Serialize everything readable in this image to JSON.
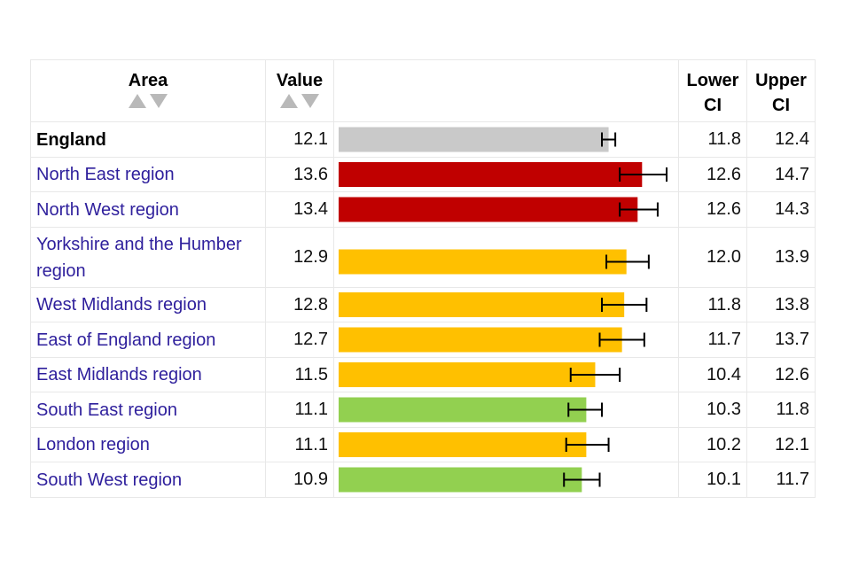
{
  "table": {
    "headers": {
      "area": "Area",
      "value": "Value",
      "lower_ci": [
        "Lower",
        "CI"
      ],
      "upper_ci": [
        "Upper",
        "CI"
      ]
    }
  },
  "colors": {
    "england": "#c9c9c9",
    "worse": "#c00000",
    "similar": "#ffc000",
    "better": "#92d050"
  },
  "icons": {
    "sort_up": "sort-up-triangle-icon",
    "sort_down": "sort-down-triangle-icon"
  },
  "chart_data": {
    "type": "bar",
    "orientation": "horizontal",
    "error_bars": true,
    "xlim": [
      0,
      14.7
    ],
    "rows": [
      {
        "area": "England",
        "value": "12.1",
        "lower": "11.8",
        "upper": "12.4",
        "status": "england"
      },
      {
        "area": "North East region",
        "value": "13.6",
        "lower": "12.6",
        "upper": "14.7",
        "status": "worse"
      },
      {
        "area": "North West region",
        "value": "13.4",
        "lower": "12.6",
        "upper": "14.3",
        "status": "worse"
      },
      {
        "area": "Yorkshire and the Humber region",
        "value": "12.9",
        "lower": "12.0",
        "upper": "13.9",
        "status": "similar"
      },
      {
        "area": "West Midlands region",
        "value": "12.8",
        "lower": "11.8",
        "upper": "13.8",
        "status": "similar"
      },
      {
        "area": "East of England region",
        "value": "12.7",
        "lower": "11.7",
        "upper": "13.7",
        "status": "similar"
      },
      {
        "area": "East Midlands region",
        "value": "11.5",
        "lower": "10.4",
        "upper": "12.6",
        "status": "similar"
      },
      {
        "area": "South East region",
        "value": "11.1",
        "lower": "10.3",
        "upper": "11.8",
        "status": "better"
      },
      {
        "area": "London region",
        "value": "11.1",
        "lower": "10.2",
        "upper": "12.1",
        "status": "similar"
      },
      {
        "area": "South West region",
        "value": "10.9",
        "lower": "10.1",
        "upper": "11.7",
        "status": "better"
      }
    ]
  }
}
